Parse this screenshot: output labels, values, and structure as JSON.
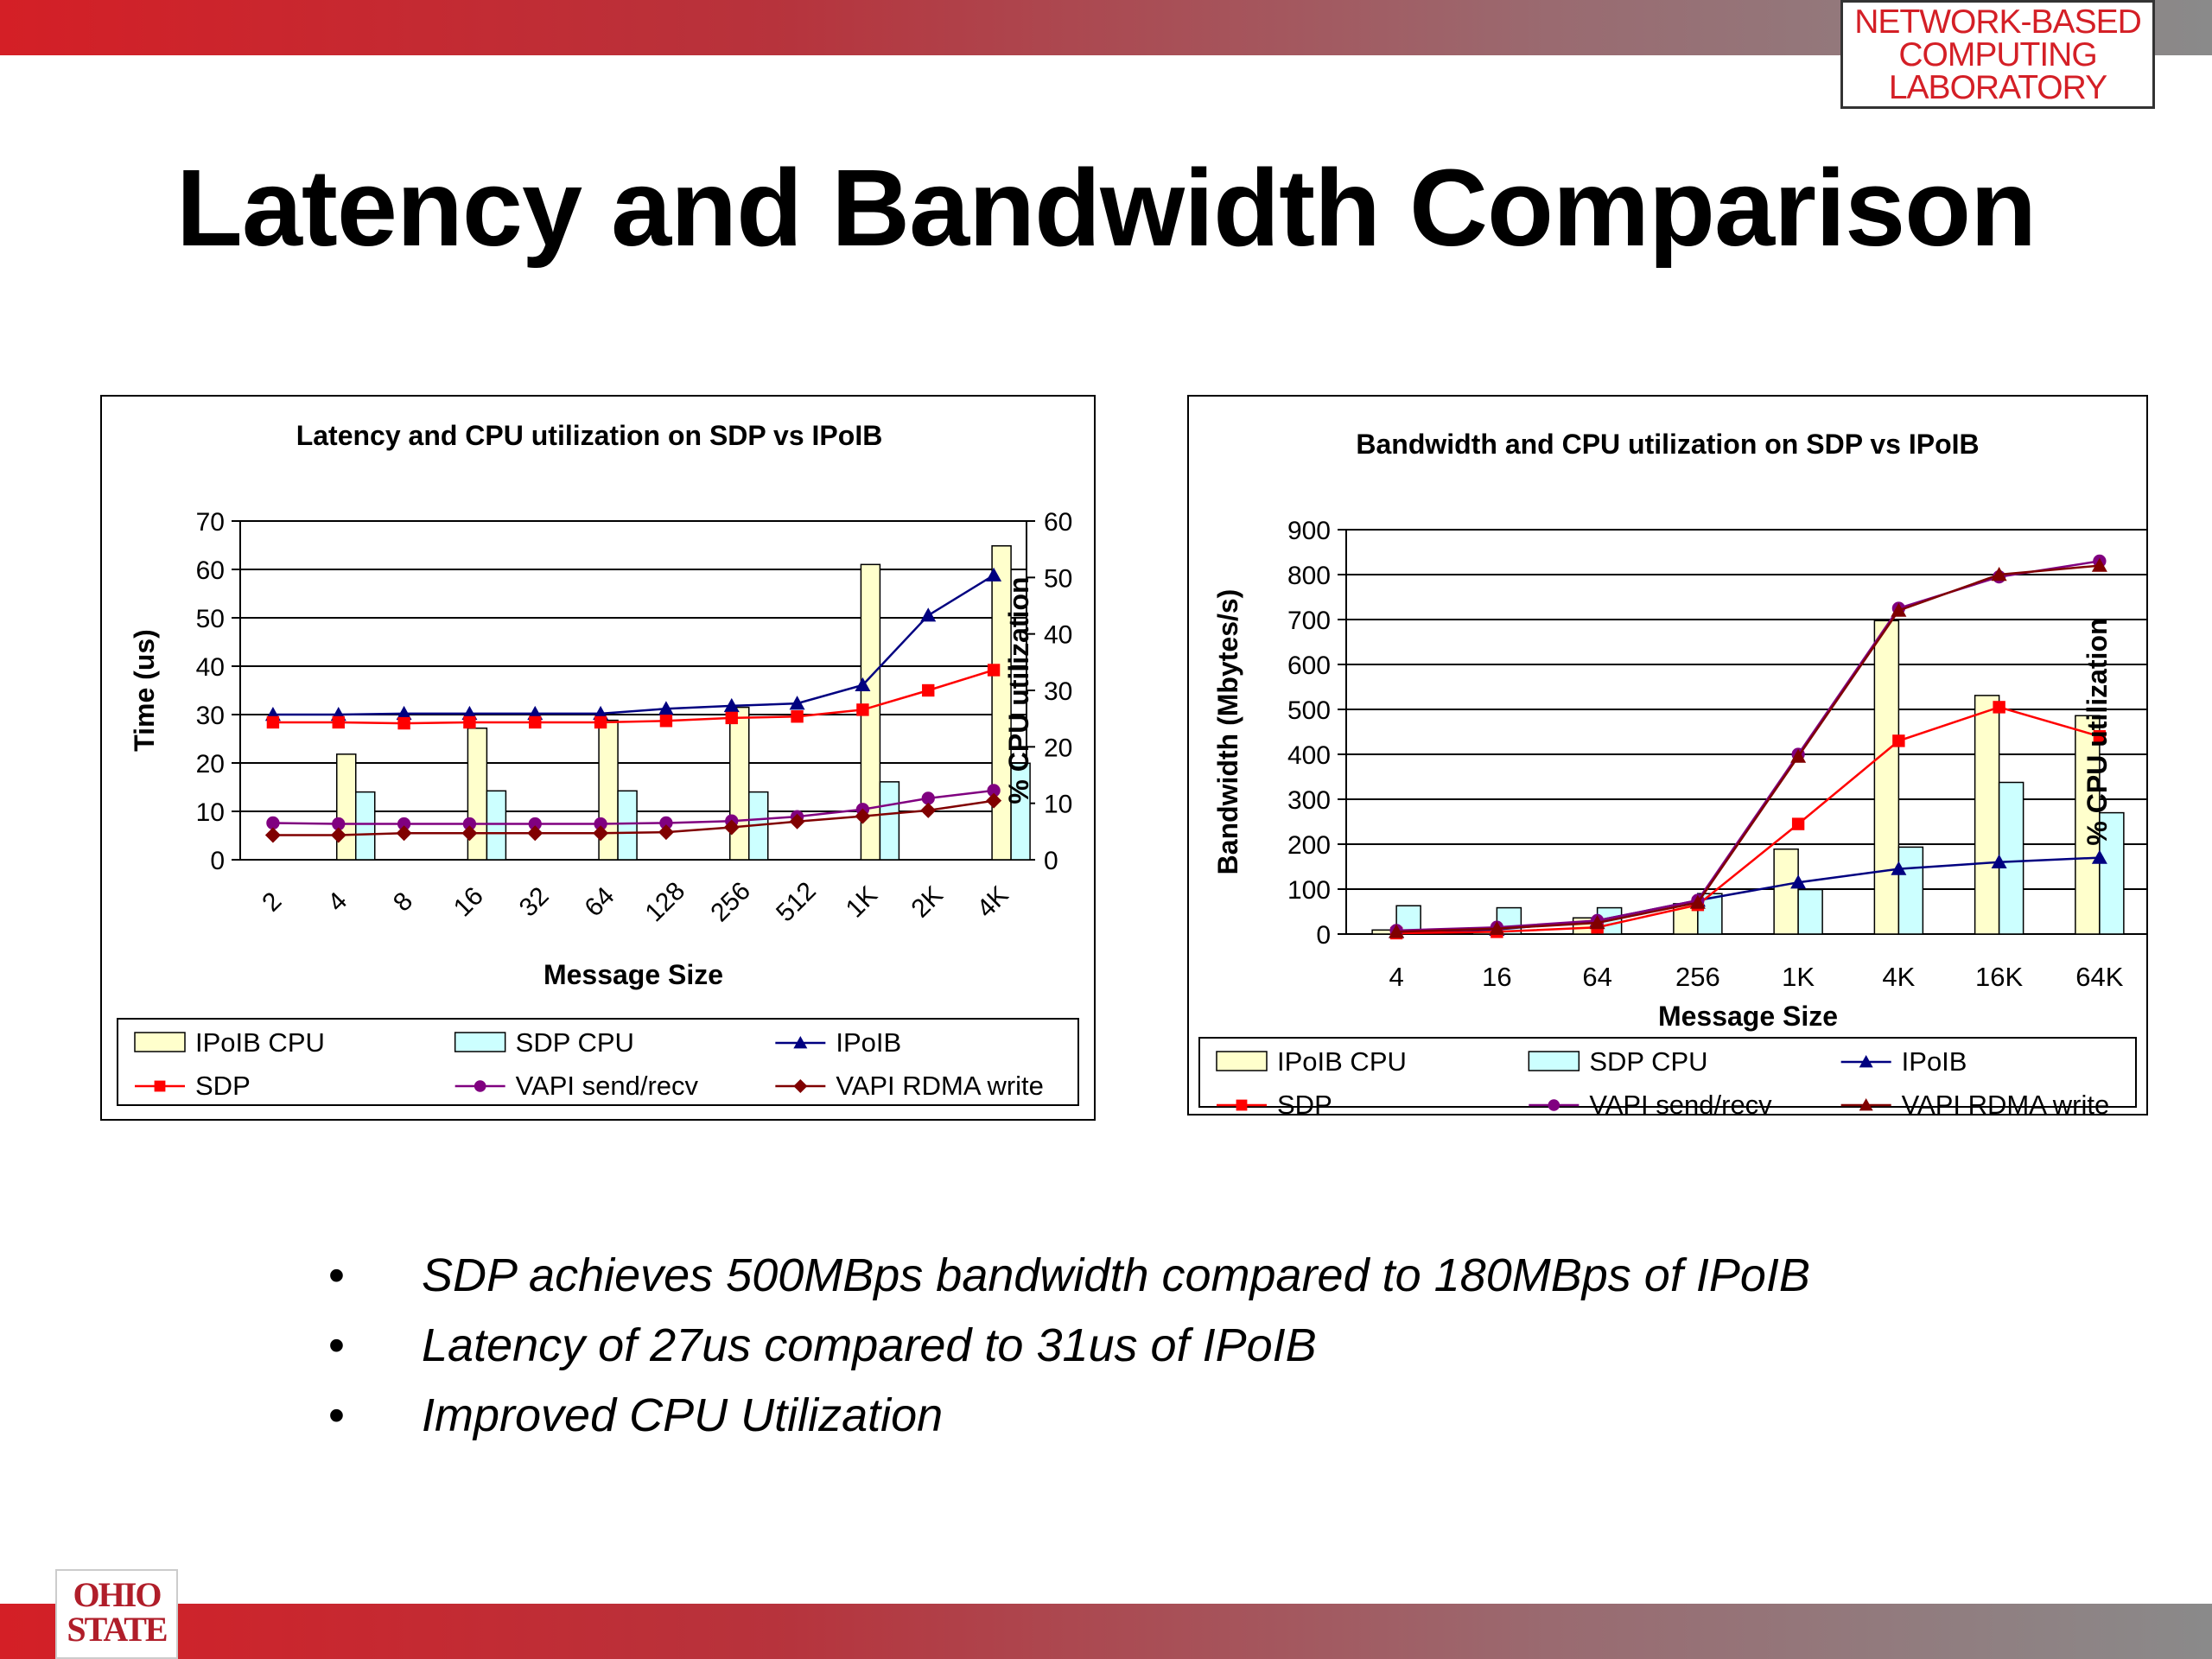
{
  "header": {
    "logo_lines": [
      "NETWORK-BASED",
      "COMPUTING",
      "LABORATORY"
    ],
    "title": "Latency and Bandwidth Comparison"
  },
  "bullets": [
    "SDP achieves 500MBps bandwidth compared to 180MBps of IPoIB",
    "Latency of 27us compared to 31us of IPoIB",
    "Improved CPU Utilization"
  ],
  "footer": {
    "logo_lines": [
      "OHIO",
      "STATE"
    ]
  },
  "colors": {
    "ipoib_cpu_fill": "#ffffcc",
    "sdp_cpu_fill": "#ccffff",
    "ipoib": "#000080",
    "sdp": "#ff0000",
    "vapi_send": "#800080",
    "vapi_rdma": "#800000"
  },
  "chart_data": [
    {
      "type": "bar+line",
      "title": "Latency and CPU utilization on SDP vs IPoIB",
      "xlabel": "Message Size",
      "ylabel": "Time (us)",
      "y2label": "% CPU utilization",
      "ylim": [
        0,
        70
      ],
      "y2lim": [
        0,
        60
      ],
      "yticks": [
        0,
        10,
        20,
        30,
        40,
        50,
        60,
        70
      ],
      "y2ticks": [
        0,
        10,
        20,
        30,
        40,
        50,
        60
      ],
      "categories": [
        "2",
        "4",
        "8",
        "16",
        "32",
        "64",
        "128",
        "256",
        "512",
        "1K",
        "2K",
        "4K"
      ],
      "bars": [
        {
          "name": "IPoIB CPU",
          "axis": "y2",
          "points": [
            [
              1,
              18.7
            ],
            [
              3,
              23.3
            ],
            [
              5,
              24.7
            ],
            [
              7,
              27.0
            ],
            [
              9,
              52.3
            ],
            [
              11,
              55.6
            ]
          ]
        },
        {
          "name": "SDP CPU",
          "axis": "y2",
          "points": [
            [
              1,
              12.0
            ],
            [
              3,
              12.2
            ],
            [
              5,
              12.2
            ],
            [
              7,
              12.0
            ],
            [
              9,
              13.8
            ],
            [
              11,
              17.1
            ]
          ]
        }
      ],
      "series": [
        {
          "name": "IPoIB",
          "marker": "triangle",
          "values": [
            30.0,
            30.0,
            30.2,
            30.2,
            30.2,
            30.2,
            31.2,
            31.8,
            32.3,
            36.1,
            50.5,
            58.8
          ]
        },
        {
          "name": "SDP",
          "marker": "square",
          "values": [
            28.4,
            28.4,
            28.2,
            28.4,
            28.4,
            28.4,
            28.7,
            29.3,
            29.6,
            31.0,
            35.0,
            39.2
          ]
        },
        {
          "name": "VAPI send/recv",
          "marker": "circle",
          "values": [
            7.6,
            7.4,
            7.4,
            7.4,
            7.4,
            7.4,
            7.6,
            8.0,
            8.9,
            10.4,
            12.7,
            14.3
          ]
        },
        {
          "name": "VAPI RDMA write",
          "marker": "diamond",
          "values": [
            5.1,
            5.1,
            5.5,
            5.5,
            5.5,
            5.5,
            5.7,
            6.7,
            7.9,
            9.0,
            10.2,
            12.2
          ]
        }
      ],
      "legend": "bottom"
    },
    {
      "type": "bar+line",
      "title": "Bandwidth and CPU utilization on SDP vs IPoIB",
      "xlabel": "Message Size",
      "ylabel": "Bandwidth (Mbytes/s)",
      "y2label": "% CPU utilization",
      "ylim": [
        0,
        900
      ],
      "y2lim": [
        0,
        200
      ],
      "yticks": [
        0,
        100,
        200,
        300,
        400,
        500,
        600,
        700,
        800,
        900
      ],
      "y2ticks": [
        0,
        40,
        80,
        120,
        160,
        200
      ],
      "categories": [
        "4",
        "16",
        "64",
        "256",
        "1K",
        "4K",
        "16K",
        "64K"
      ],
      "bars": [
        {
          "name": "IPoIB CPU",
          "axis": "y2",
          "values": [
            2,
            3,
            8,
            15,
            42,
            155,
            118,
            108
          ]
        },
        {
          "name": "SDP CPU",
          "axis": "y2",
          "values": [
            14,
            13,
            13,
            20,
            22,
            43,
            75,
            60
          ]
        }
      ],
      "series": [
        {
          "name": "IPoIB",
          "marker": "triangle",
          "values": [
            5,
            10,
            30,
            75,
            115,
            145,
            160,
            170
          ]
        },
        {
          "name": "SDP",
          "marker": "square",
          "values": [
            2,
            5,
            15,
            65,
            245,
            430,
            505,
            440
          ]
        },
        {
          "name": "VAPI send/recv",
          "marker": "circle",
          "values": [
            8,
            15,
            30,
            75,
            400,
            725,
            795,
            830
          ]
        },
        {
          "name": "VAPI RDMA write",
          "marker": "triangle",
          "values": [
            5,
            12,
            25,
            70,
            395,
            720,
            800,
            820
          ]
        }
      ],
      "legend": "bottom"
    }
  ]
}
